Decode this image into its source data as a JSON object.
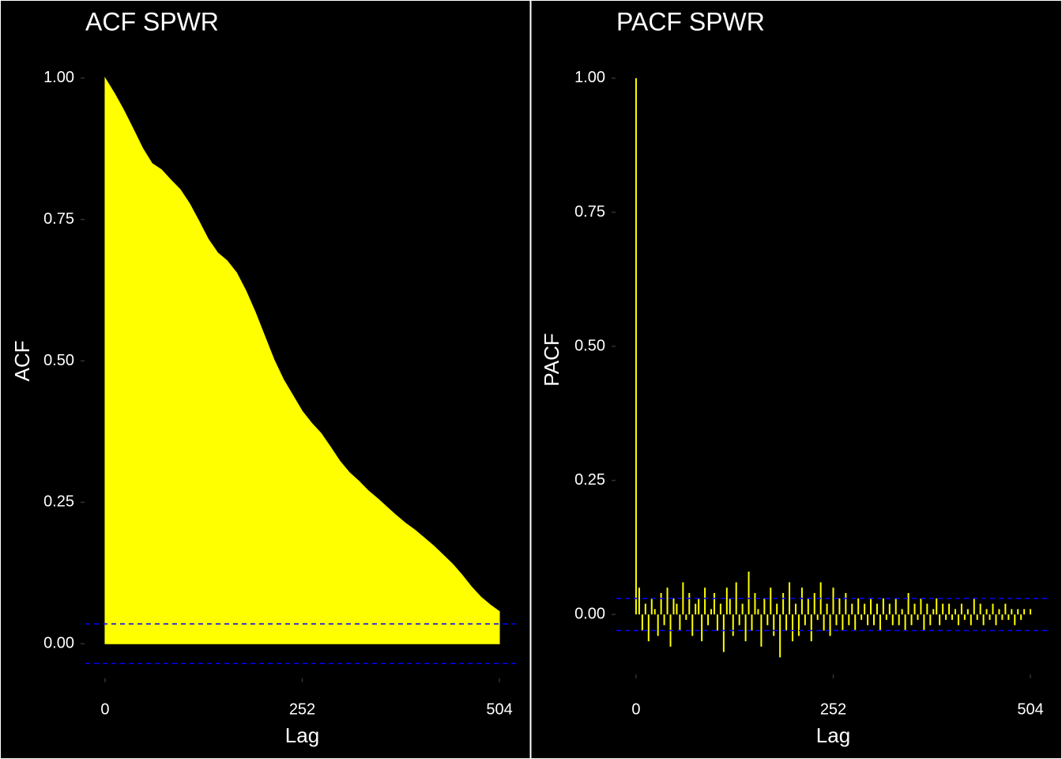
{
  "chart_data": [
    {
      "type": "area",
      "title": "ACF SPWR",
      "x_label": "Lag",
      "y_label": "ACF",
      "color": "#ffff00",
      "line_color": "#0000ff",
      "x": [
        0,
        12,
        24,
        36,
        48,
        60,
        72,
        84,
        96,
        108,
        120,
        132,
        144,
        156,
        168,
        180,
        192,
        204,
        216,
        228,
        240,
        252,
        264,
        276,
        288,
        300,
        312,
        324,
        336,
        348,
        360,
        372,
        384,
        396,
        408,
        420,
        432,
        444,
        456,
        468,
        480,
        492,
        504
      ],
      "values": [
        1.0,
        0.973,
        0.943,
        0.91,
        0.876,
        0.849,
        0.838,
        0.82,
        0.803,
        0.778,
        0.747,
        0.715,
        0.691,
        0.677,
        0.656,
        0.624,
        0.586,
        0.544,
        0.502,
        0.467,
        0.439,
        0.411,
        0.39,
        0.372,
        0.348,
        0.323,
        0.303,
        0.288,
        0.271,
        0.257,
        0.242,
        0.227,
        0.213,
        0.201,
        0.187,
        0.173,
        0.157,
        0.141,
        0.122,
        0.101,
        0.083,
        0.069,
        0.057
      ],
      "hlines": [
        0.035,
        -0.035
      ],
      "xlim": [
        -25.2,
        529.2
      ],
      "xticks": [
        0,
        252,
        504
      ],
      "ylim": [
        -0.05,
        1.05
      ],
      "yticks": [
        {
          "value": 0,
          "label": "0.00"
        },
        0.25,
        {
          "value": 0.5,
          "label": "0.50"
        },
        0.75,
        {
          "value": 1,
          "label": "1.00"
        }
      ]
    },
    {
      "type": "bar",
      "title": "PACF SPWR",
      "x_label": "Lag",
      "y_label": "PACF",
      "color": "#ffff00",
      "line_color": "#0000ff",
      "x": [
        0,
        4,
        8,
        12,
        16,
        20,
        24,
        28,
        32,
        36,
        40,
        44,
        48,
        52,
        56,
        60,
        64,
        68,
        72,
        76,
        80,
        84,
        88,
        92,
        96,
        100,
        104,
        108,
        112,
        116,
        120,
        124,
        128,
        132,
        136,
        140,
        144,
        148,
        152,
        156,
        160,
        164,
        168,
        172,
        176,
        180,
        184,
        188,
        192,
        196,
        200,
        204,
        208,
        212,
        216,
        220,
        224,
        228,
        232,
        236,
        240,
        244,
        248,
        252,
        256,
        260,
        264,
        268,
        272,
        276,
        280,
        284,
        288,
        292,
        296,
        300,
        304,
        308,
        312,
        316,
        320,
        324,
        328,
        332,
        336,
        340,
        344,
        348,
        352,
        356,
        360,
        364,
        368,
        372,
        376,
        380,
        384,
        388,
        392,
        396,
        400,
        404,
        408,
        412,
        416,
        420,
        424,
        428,
        432,
        436,
        440,
        444,
        448,
        452,
        456,
        460,
        464,
        468,
        472,
        476,
        480,
        484,
        488,
        492,
        496,
        500,
        504
      ],
      "values": [
        1.0,
        0.05,
        -0.03,
        0.02,
        -0.05,
        0.03,
        0.01,
        -0.04,
        0.04,
        -0.02,
        0.05,
        -0.06,
        0.03,
        0.02,
        -0.03,
        0.06,
        -0.01,
        0.04,
        -0.04,
        0.02,
        0.03,
        -0.05,
        0.05,
        -0.02,
        0.01,
        0.04,
        -0.03,
        0.02,
        -0.07,
        0.05,
        0.03,
        -0.04,
        0.06,
        -0.02,
        0.02,
        -0.05,
        0.08,
        -0.03,
        0.04,
        0.01,
        -0.06,
        0.03,
        -0.02,
        0.05,
        -0.04,
        0.02,
        -0.08,
        0.04,
        -0.03,
        0.06,
        -0.05,
        0.02,
        -0.04,
        0.05,
        -0.02,
        0.03,
        -0.05,
        0.04,
        -0.01,
        0.06,
        -0.03,
        0.02,
        -0.04,
        0.05,
        -0.02,
        0.03,
        -0.03,
        0.04,
        -0.02,
        0.02,
        -0.03,
        0.03,
        -0.01,
        0.02,
        -0.02,
        0.03,
        -0.02,
        0.02,
        -0.03,
        0.03,
        -0.01,
        0.02,
        -0.02,
        0.03,
        -0.02,
        0.01,
        -0.03,
        0.04,
        -0.02,
        0.02,
        -0.01,
        0.03,
        -0.03,
        0.02,
        -0.02,
        0.01,
        0.03,
        -0.02,
        0.02,
        -0.01,
        0.02,
        -0.01,
        0.01,
        -0.02,
        0.02,
        -0.01,
        0.01,
        -0.02,
        0.03,
        -0.01,
        0.02,
        -0.02,
        0.01,
        -0.01,
        0.02,
        -0.02,
        0.01,
        -0.01,
        0.02,
        -0.01,
        0.01,
        -0.02,
        0.01,
        -0.01,
        0.01,
        0.0,
        0.01
      ],
      "hlines": [
        0.03,
        -0.03
      ],
      "xlim": [
        -25.2,
        529.2
      ],
      "xticks": [
        0,
        252,
        504
      ],
      "ylim": [
        -0.1,
        1.05
      ],
      "yticks": [
        {
          "value": 0,
          "label": "0.00"
        },
        0.25,
        {
          "value": 0.5,
          "label": "0.50"
        },
        0.75,
        {
          "value": 1,
          "label": "1.00"
        }
      ]
    }
  ]
}
